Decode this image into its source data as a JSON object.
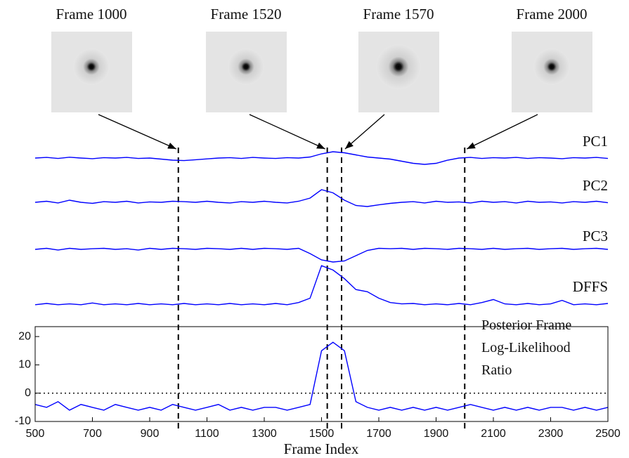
{
  "images": [
    {
      "label": "Frame 1000",
      "frame": 1000
    },
    {
      "label": "Frame 1520",
      "frame": 1520
    },
    {
      "label": "Frame 1570",
      "frame": 1570
    },
    {
      "label": "Frame 2000",
      "frame": 2000
    }
  ],
  "chart_data": {
    "type": "line",
    "xlabel": "Frame Index",
    "x": [
      500,
      540,
      580,
      620,
      660,
      700,
      740,
      780,
      820,
      860,
      900,
      940,
      980,
      1020,
      1060,
      1100,
      1140,
      1180,
      1220,
      1260,
      1300,
      1340,
      1380,
      1420,
      1460,
      1500,
      1540,
      1580,
      1620,
      1660,
      1700,
      1740,
      1780,
      1820,
      1860,
      1900,
      1940,
      1980,
      2020,
      2060,
      2100,
      2140,
      2180,
      2220,
      2260,
      2300,
      2340,
      2380,
      2420,
      2460,
      2500
    ],
    "xlim": [
      500,
      2500
    ],
    "xticks": [
      500,
      700,
      900,
      1100,
      1300,
      1500,
      1700,
      1900,
      2100,
      2300,
      2500
    ],
    "hline": 0,
    "series": [
      {
        "name": "PC1",
        "color": "#0000ff",
        "ylim": [
          -1,
          1
        ],
        "values": [
          0,
          0.03,
          -0.02,
          0.04,
          0,
          -0.03,
          0.02,
          0,
          0.03,
          -0.02,
          0,
          -0.05,
          -0.1,
          -0.12,
          -0.08,
          -0.04,
          0,
          0.02,
          -0.02,
          0.03,
          0,
          -0.02,
          0.02,
          0,
          0.05,
          0.2,
          0.3,
          0.25,
          0.15,
          0.05,
          0,
          -0.05,
          -0.15,
          -0.25,
          -0.3,
          -0.25,
          -0.1,
          0,
          0.03,
          -0.02,
          0.02,
          0,
          0.03,
          -0.02,
          0.02,
          0,
          -0.03,
          0.02,
          0,
          0.03,
          -0.02
        ]
      },
      {
        "name": "PC2",
        "color": "#0000ff",
        "ylim": [
          -1,
          1
        ],
        "values": [
          0,
          0.05,
          -0.03,
          0.1,
          0,
          -0.05,
          0.03,
          0,
          0.05,
          -0.03,
          0.02,
          0,
          0.05,
          0.03,
          0,
          0.05,
          0,
          -0.03,
          0.03,
          0,
          0.05,
          0,
          -0.03,
          0.05,
          0.2,
          0.6,
          0.45,
          0.1,
          -0.15,
          -0.2,
          -0.12,
          -0.05,
          0,
          0.03,
          -0.03,
          0.05,
          0,
          0.02,
          -0.03,
          0.05,
          0,
          0.03,
          -0.03,
          0.05,
          0,
          0.02,
          -0.03,
          0.03,
          0,
          0.05,
          -0.02
        ]
      },
      {
        "name": "PC3",
        "color": "#0000ff",
        "ylim": [
          -1,
          1
        ],
        "values": [
          0,
          0.05,
          -0.03,
          0.05,
          0,
          0.03,
          0.05,
          0,
          0.03,
          -0.03,
          0.05,
          0,
          0.05,
          0.03,
          0,
          0.05,
          0.03,
          0,
          0.05,
          0,
          0.05,
          0.03,
          0,
          0.05,
          -0.2,
          -0.5,
          -0.6,
          -0.55,
          -0.3,
          -0.05,
          0.05,
          0.03,
          0.05,
          0,
          0.05,
          0.03,
          0,
          0.05,
          0.03,
          0,
          0.05,
          0,
          0.03,
          0.05,
          0,
          0.03,
          0.05,
          0,
          0.03,
          0.05,
          0
        ]
      },
      {
        "name": "DFFS",
        "color": "#0000ff",
        "ylim": [
          -0.1,
          1
        ],
        "values": [
          0,
          0.03,
          0,
          0.02,
          0,
          0.04,
          0,
          0.02,
          0,
          0.03,
          0,
          0.02,
          0,
          0.03,
          0,
          0.02,
          0,
          0.03,
          0,
          0.02,
          0,
          0.03,
          0,
          0.05,
          0.15,
          0.9,
          0.8,
          0.6,
          0.35,
          0.3,
          0.15,
          0.05,
          0.02,
          0.03,
          0,
          0.02,
          0,
          0.03,
          0,
          0.05,
          0.12,
          0.02,
          0,
          0.03,
          0,
          0.02,
          0.1,
          0,
          0.02,
          0,
          0.03
        ]
      },
      {
        "name": "Posterior Frame Log-Likelihood Ratio",
        "color": "#0000ff",
        "ylim": [
          -10,
          23.5
        ],
        "yticks": [
          -10,
          0,
          10,
          20
        ],
        "values": [
          -4,
          -5,
          -3,
          -6,
          -4,
          -5,
          -6,
          -4,
          -5,
          -6,
          -5,
          -6,
          -4,
          -5,
          -6,
          -5,
          -4,
          -6,
          -5,
          -6,
          -5,
          -5,
          -6,
          -5,
          -4,
          15,
          18,
          15,
          -3,
          -5,
          -6,
          -5,
          -6,
          -5,
          -6,
          -5,
          -6,
          -5,
          -4,
          -5,
          -6,
          -5,
          -6,
          -5,
          -6,
          -5,
          -5,
          -6,
          -5,
          -6,
          -5
        ]
      }
    ]
  }
}
